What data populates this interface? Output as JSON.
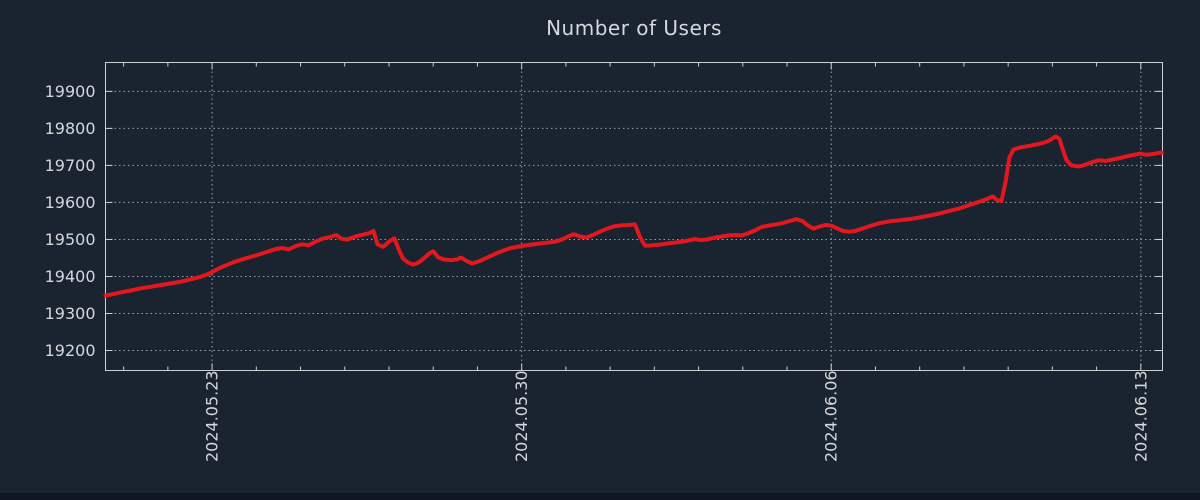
{
  "title": "Number of Users",
  "colors": {
    "background": "#1a2330",
    "bottom_strip": "#111722",
    "plot_border": "#cdd0d5",
    "grid": "#99a0ac",
    "tick_text": "#d5d7db",
    "title_text": "#d6d8dc",
    "line": "#e3171e"
  },
  "chart_data": {
    "type": "line",
    "title": "Number of Users",
    "legend": "none",
    "grid": true,
    "x_axis": {
      "tick_labels": [
        "2024.05.23",
        "2024.05.30",
        "2024.06.06",
        "2024.06.13"
      ],
      "tick_days": [
        0,
        7,
        14,
        21
      ],
      "minor_tick_interval_days": 1,
      "range_days": [
        -2.41,
        21.49
      ],
      "label_rotation_deg": -90
    },
    "y_axis": {
      "ticks": [
        19200,
        19300,
        19400,
        19500,
        19600,
        19700,
        19800,
        19900
      ],
      "range": [
        19146,
        19978
      ]
    },
    "series": [
      {
        "name": "Number of Users",
        "color": "#e3171e",
        "points": [
          [
            -2.41,
            19348
          ],
          [
            -2.22,
            19353
          ],
          [
            -2.07,
            19357
          ],
          [
            -1.84,
            19362
          ],
          [
            -1.61,
            19368
          ],
          [
            -1.39,
            19372
          ],
          [
            -1.16,
            19377
          ],
          [
            -0.94,
            19381
          ],
          [
            -0.71,
            19386
          ],
          [
            -0.49,
            19392
          ],
          [
            -0.26,
            19399
          ],
          [
            -0.1,
            19406
          ],
          [
            0.03,
            19414
          ],
          [
            0.19,
            19424
          ],
          [
            0.37,
            19433
          ],
          [
            0.55,
            19441
          ],
          [
            0.73,
            19448
          ],
          [
            0.91,
            19454
          ],
          [
            1.1,
            19461
          ],
          [
            1.28,
            19468
          ],
          [
            1.43,
            19474
          ],
          [
            1.59,
            19477
          ],
          [
            1.73,
            19473
          ],
          [
            1.89,
            19482
          ],
          [
            2.04,
            19487
          ],
          [
            2.18,
            19484
          ],
          [
            2.34,
            19494
          ],
          [
            2.5,
            19502
          ],
          [
            2.68,
            19507
          ],
          [
            2.81,
            19512
          ],
          [
            2.92,
            19502
          ],
          [
            3.06,
            19500
          ],
          [
            3.24,
            19508
          ],
          [
            3.42,
            19513
          ],
          [
            3.56,
            19517
          ],
          [
            3.65,
            19523
          ],
          [
            3.74,
            19487
          ],
          [
            3.87,
            19480
          ],
          [
            4.03,
            19497
          ],
          [
            4.12,
            19503
          ],
          [
            4.23,
            19470
          ],
          [
            4.32,
            19448
          ],
          [
            4.44,
            19437
          ],
          [
            4.55,
            19432
          ],
          [
            4.66,
            19437
          ],
          [
            4.8,
            19450
          ],
          [
            4.91,
            19462
          ],
          [
            5.0,
            19468
          ],
          [
            5.11,
            19452
          ],
          [
            5.23,
            19446
          ],
          [
            5.39,
            19444
          ],
          [
            5.54,
            19446
          ],
          [
            5.63,
            19451
          ],
          [
            5.75,
            19442
          ],
          [
            5.88,
            19435
          ],
          [
            6.04,
            19441
          ],
          [
            6.22,
            19451
          ],
          [
            6.4,
            19461
          ],
          [
            6.58,
            19470
          ],
          [
            6.76,
            19477
          ],
          [
            6.94,
            19481
          ],
          [
            7.15,
            19485
          ],
          [
            7.35,
            19488
          ],
          [
            7.55,
            19491
          ],
          [
            7.76,
            19494
          ],
          [
            7.91,
            19500
          ],
          [
            8.05,
            19508
          ],
          [
            8.18,
            19514
          ],
          [
            8.32,
            19508
          ],
          [
            8.46,
            19505
          ],
          [
            8.61,
            19512
          ],
          [
            8.77,
            19521
          ],
          [
            8.93,
            19529
          ],
          [
            9.07,
            19535
          ],
          [
            9.25,
            19538
          ],
          [
            9.43,
            19539
          ],
          [
            9.56,
            19541
          ],
          [
            9.68,
            19505
          ],
          [
            9.79,
            19483
          ],
          [
            9.95,
            19484
          ],
          [
            10.13,
            19486
          ],
          [
            10.35,
            19490
          ],
          [
            10.58,
            19493
          ],
          [
            10.76,
            19497
          ],
          [
            10.92,
            19501
          ],
          [
            11.05,
            19498
          ],
          [
            11.19,
            19500
          ],
          [
            11.37,
            19505
          ],
          [
            11.53,
            19508
          ],
          [
            11.68,
            19511
          ],
          [
            11.84,
            19512
          ],
          [
            11.98,
            19511
          ],
          [
            12.11,
            19516
          ],
          [
            12.27,
            19524
          ],
          [
            12.43,
            19534
          ],
          [
            12.61,
            19538
          ],
          [
            12.77,
            19541
          ],
          [
            12.93,
            19545
          ],
          [
            13.06,
            19550
          ],
          [
            13.22,
            19555
          ],
          [
            13.36,
            19549
          ],
          [
            13.47,
            19538
          ],
          [
            13.6,
            19529
          ],
          [
            13.74,
            19535
          ],
          [
            13.87,
            19539
          ],
          [
            14.01,
            19537
          ],
          [
            14.15,
            19529
          ],
          [
            14.26,
            19523
          ],
          [
            14.39,
            19521
          ],
          [
            14.51,
            19522
          ],
          [
            14.62,
            19526
          ],
          [
            14.73,
            19530
          ],
          [
            14.87,
            19536
          ],
          [
            15.09,
            19544
          ],
          [
            15.32,
            19549
          ],
          [
            15.55,
            19552
          ],
          [
            15.77,
            19555
          ],
          [
            15.93,
            19558
          ],
          [
            16.11,
            19562
          ],
          [
            16.29,
            19566
          ],
          [
            16.47,
            19571
          ],
          [
            16.67,
            19577
          ],
          [
            16.9,
            19584
          ],
          [
            17.13,
            19593
          ],
          [
            17.35,
            19602
          ],
          [
            17.51,
            19609
          ],
          [
            17.65,
            19616
          ],
          [
            17.76,
            19606
          ],
          [
            17.85,
            19604
          ],
          [
            17.94,
            19655
          ],
          [
            18.03,
            19722
          ],
          [
            18.12,
            19743
          ],
          [
            18.26,
            19748
          ],
          [
            18.44,
            19752
          ],
          [
            18.62,
            19756
          ],
          [
            18.8,
            19761
          ],
          [
            18.93,
            19767
          ],
          [
            19.07,
            19778
          ],
          [
            19.16,
            19772
          ],
          [
            19.23,
            19745
          ],
          [
            19.32,
            19714
          ],
          [
            19.43,
            19700
          ],
          [
            19.61,
            19697
          ],
          [
            19.77,
            19703
          ],
          [
            19.93,
            19710
          ],
          [
            20.06,
            19714
          ],
          [
            20.2,
            19712
          ],
          [
            20.33,
            19715
          ],
          [
            20.49,
            19719
          ],
          [
            20.67,
            19724
          ],
          [
            20.83,
            19728
          ],
          [
            20.99,
            19732
          ],
          [
            21.1,
            19729
          ],
          [
            21.24,
            19730
          ],
          [
            21.37,
            19733
          ],
          [
            21.48,
            19735
          ]
        ]
      }
    ]
  }
}
